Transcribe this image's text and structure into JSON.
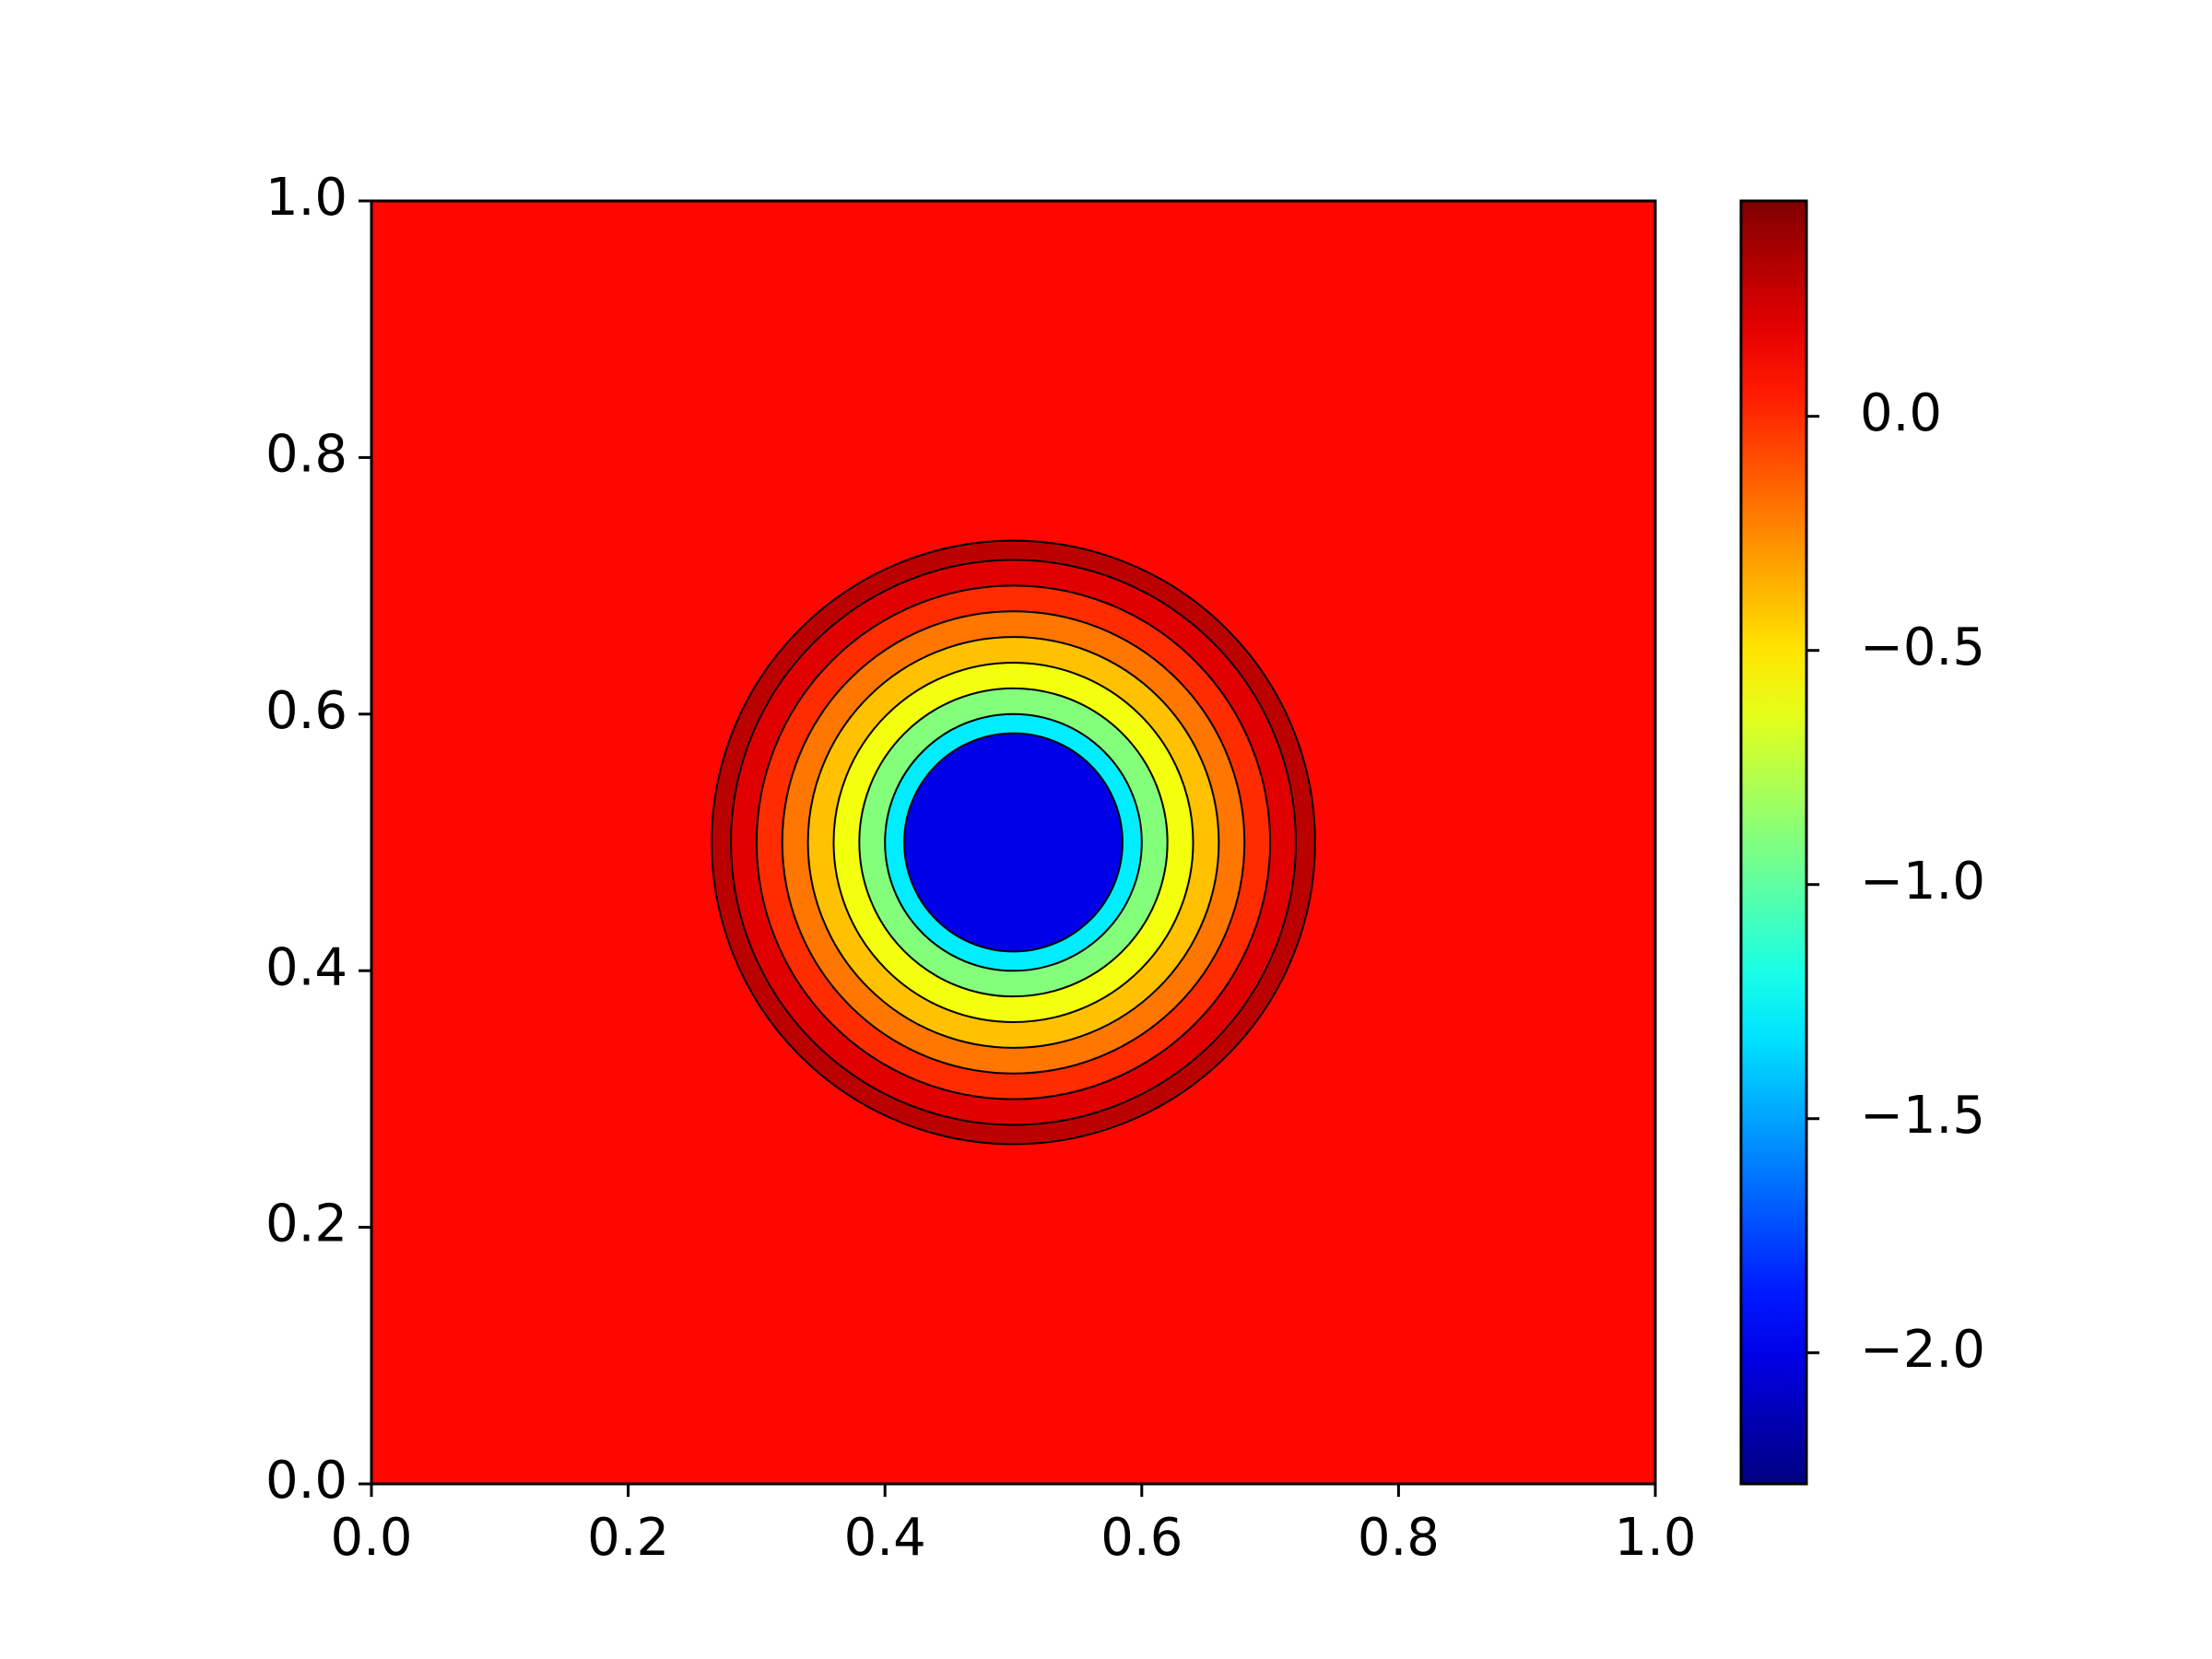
{
  "chart_data": {
    "type": "contour",
    "cmap": "jet",
    "center": [
      0.5,
      0.5
    ],
    "radius": [
      0.085,
      0.1,
      0.12,
      0.14,
      0.16,
      0.18,
      0.2,
      0.22,
      0.235
    ],
    "z": [
      -2.0,
      -1.3,
      -0.9,
      -0.6,
      -0.4,
      -0.2,
      0.0,
      0.2,
      0.3
    ],
    "background": 0.1,
    "xlim": [
      0,
      1
    ],
    "ylim": [
      0,
      1
    ],
    "xticks": [
      {
        "value": 0,
        "label": "0.0"
      },
      0.2,
      0.4,
      0.6,
      0.8,
      {
        "value": 1,
        "label": "1.0"
      }
    ],
    "yticks": [
      {
        "value": 0,
        "label": "0.0"
      },
      0.2,
      0.4,
      0.6,
      0.8,
      {
        "value": 1,
        "label": "1.0"
      }
    ],
    "clim": [
      -2.28,
      0.46
    ],
    "cticks": [
      {
        "value": -2,
        "label": "−2.0"
      },
      {
        "value": -1.5,
        "label": "−1.5"
      },
      {
        "value": -1,
        "label": "−1.0"
      },
      {
        "value": -0.5,
        "label": "−0.5"
      },
      {
        "value": 0,
        "label": "0.0"
      }
    ]
  }
}
